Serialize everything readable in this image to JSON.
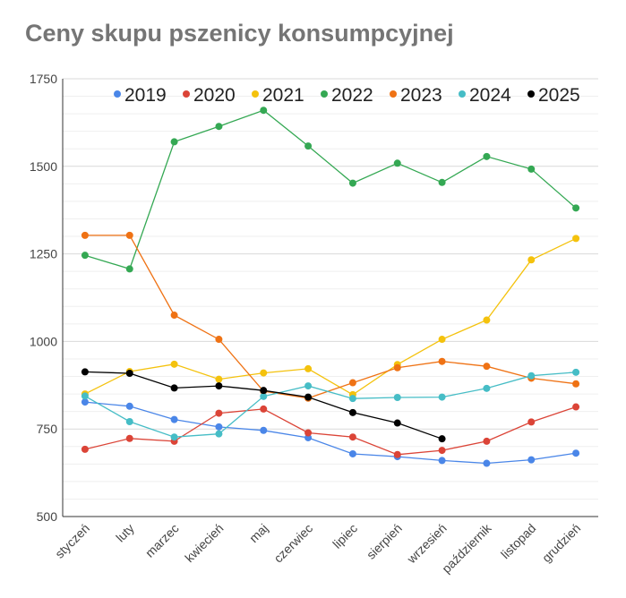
{
  "chart_data": {
    "type": "line",
    "title": "Ceny skupu pszenicy konsumpcyjnej",
    "xlabel": "",
    "ylabel": "",
    "ylim": [
      500,
      1750
    ],
    "yticks": [
      500,
      750,
      1000,
      1250,
      1500,
      1750
    ],
    "grid": true,
    "legend_position": "top",
    "categories": [
      "styczeń",
      "luty",
      "marzec",
      "kwiecień",
      "maj",
      "czerwiec",
      "lipiec",
      "sierpień",
      "wrzesień",
      "październik",
      "listopad",
      "grudzień"
    ],
    "series": [
      {
        "name": "2019",
        "color": "#4a86e8",
        "values": [
          827,
          815,
          777,
          756,
          746,
          725,
          679,
          671,
          660,
          652,
          662,
          681
        ]
      },
      {
        "name": "2020",
        "color": "#db4437",
        "values": [
          692,
          723,
          715,
          795,
          807,
          739,
          727,
          677,
          689,
          715,
          770,
          813
        ]
      },
      {
        "name": "2021",
        "color": "#f4c20d",
        "values": [
          850,
          914,
          935,
          892,
          910,
          922,
          848,
          934,
          1006,
          1061,
          1233,
          1294
        ]
      },
      {
        "name": "2022",
        "color": "#34a853",
        "values": [
          1246,
          1207,
          1570,
          1614,
          1660,
          1558,
          1452,
          1509,
          1454,
          1528,
          1492,
          1381
        ]
      },
      {
        "name": "2023",
        "color": "#ef7214",
        "values": [
          1303,
          1303,
          1075,
          1006,
          858,
          838,
          882,
          925,
          943,
          929,
          895,
          879
        ]
      },
      {
        "name": "2024",
        "color": "#46bdc6",
        "values": [
          844,
          771,
          727,
          736,
          843,
          873,
          837,
          840,
          841,
          866,
          902,
          912
        ]
      },
      {
        "name": "2025",
        "color": "#000000",
        "values": [
          913,
          909,
          867,
          873,
          860,
          841,
          797,
          767,
          722,
          null,
          null,
          null
        ]
      }
    ]
  }
}
